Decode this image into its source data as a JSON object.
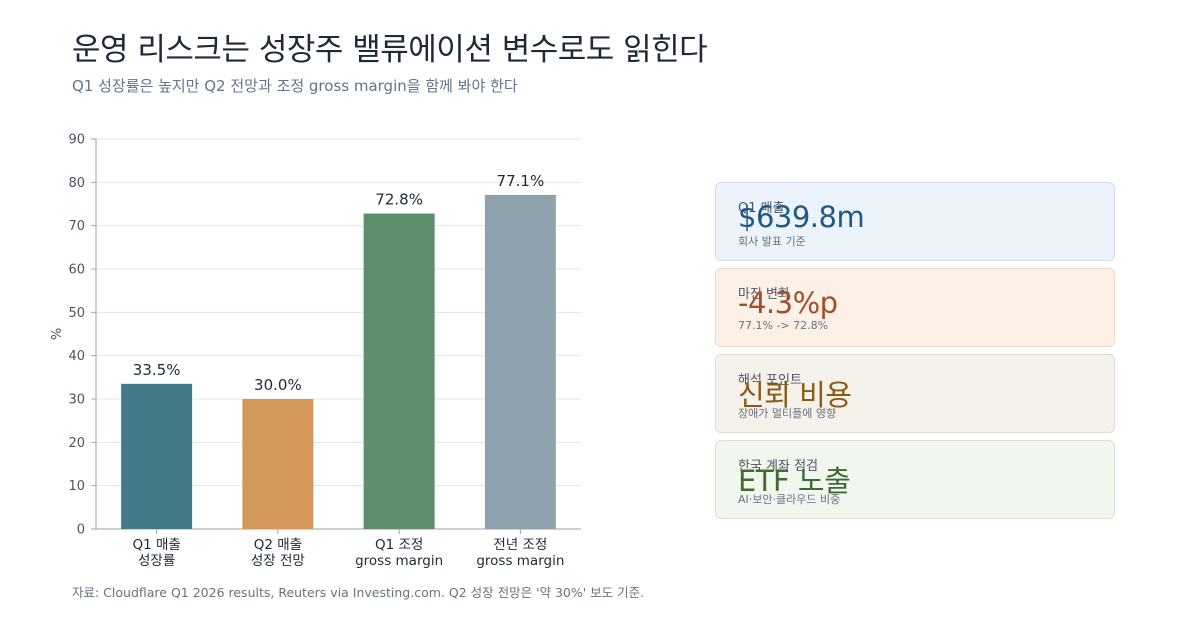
{
  "header": {
    "title": "운영 리스크는 성장주 밸류에이션 변수로도 읽힌다",
    "subtitle": "Q1 성장률은 높지만 Q2 전망과 조정 gross margin을 함께 봐야 한다"
  },
  "footer": {
    "source": "자료: Cloudflare Q1 2026 results, Reuters via Investing.com. Q2 성장 전망은 '약 30%' 보도 기준."
  },
  "chart_data": {
    "type": "bar",
    "categories": [
      [
        "Q1 매출",
        "성장률"
      ],
      [
        "Q2 매출",
        "성장 전망"
      ],
      [
        "Q1 조정",
        "gross margin"
      ],
      [
        "전년 조정",
        "gross margin"
      ]
    ],
    "values": [
      33.5,
      30.0,
      72.8,
      77.1
    ],
    "data_labels": [
      "33.5%",
      "30.0%",
      "72.8%",
      "77.1%"
    ],
    "colors": [
      "#427a8b",
      "#d4995a",
      "#5e8f6d",
      "#8ea3ae"
    ],
    "ylabel": "%",
    "ylim": [
      0,
      90
    ],
    "yticks": [
      0,
      10,
      20,
      30,
      40,
      50,
      60,
      70,
      80,
      90
    ],
    "grid": true,
    "legend": "none"
  },
  "cards": [
    {
      "label": "Q1 매출",
      "value": "$639.8m",
      "note": "회사 발표 기준",
      "bg": "#ecf3fb",
      "border": "#cfdbe8",
      "value_color": "#1f5a85"
    },
    {
      "label": "마진 변화",
      "value": "-4.3%p",
      "note": "77.1% -> 72.8%",
      "bg": "#fdf1e7",
      "border": "#ead9c8",
      "value_color": "#a14f2b"
    },
    {
      "label": "해석 포인트",
      "value": "신뢰 비용",
      "note": "장애가 멀티플에 영향",
      "bg": "#f5f1eb",
      "border": "#e1dbd2",
      "value_color": "#8b5a16"
    },
    {
      "label": "한국 계좌 점검",
      "value": "ETF 노출",
      "note": "AI·보안·클라우드 비중",
      "bg": "#f1f6ee",
      "border": "#d8e2d3",
      "value_color": "#3f6b32"
    }
  ]
}
